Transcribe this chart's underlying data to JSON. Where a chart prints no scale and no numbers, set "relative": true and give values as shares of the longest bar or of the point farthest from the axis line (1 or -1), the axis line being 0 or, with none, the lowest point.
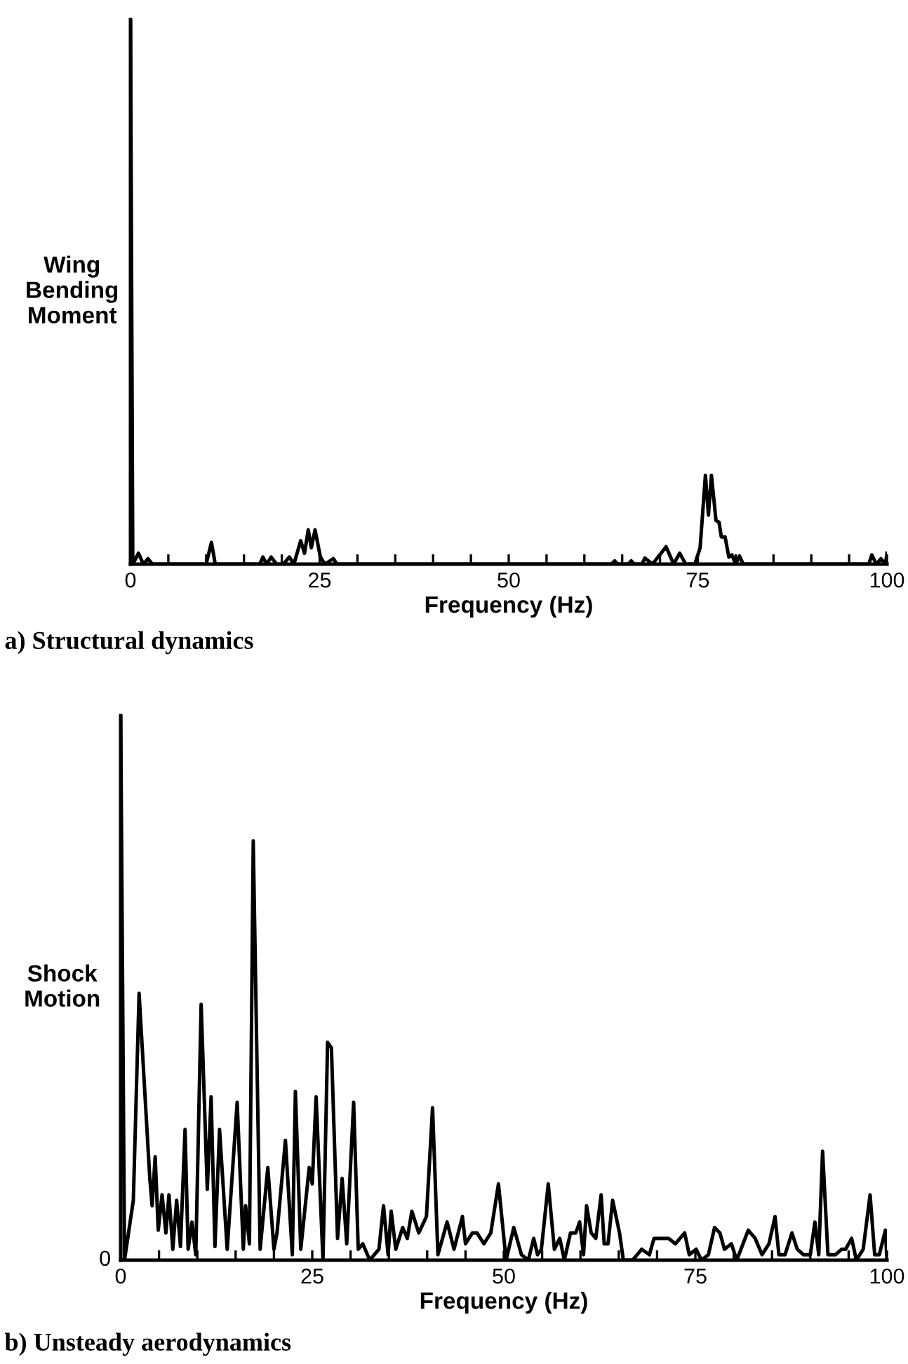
{
  "chart_data": [
    {
      "type": "line",
      "title": "a) Structural dynamics",
      "xlabel": "Frequency (Hz)",
      "ylabel": "Wing\nBending\nMoment",
      "relative": true,
      "grid": false,
      "legend": false,
      "marker": "none",
      "line_style": "solid",
      "xlim": [
        0,
        100
      ],
      "xticks": [
        0,
        {
          "value": 5,
          "label": null
        },
        {
          "value": 10,
          "label": null
        },
        {
          "value": 15,
          "label": null
        },
        {
          "value": 20,
          "label": null
        },
        25,
        {
          "value": 30,
          "label": null
        },
        {
          "value": 35,
          "label": null
        },
        {
          "value": 40,
          "label": null
        },
        {
          "value": 45,
          "label": null
        },
        50,
        {
          "value": 55,
          "label": null
        },
        {
          "value": 60,
          "label": null
        },
        {
          "value": 65,
          "label": null
        },
        {
          "value": 70,
          "label": null
        },
        75,
        {
          "value": 80,
          "label": null
        },
        {
          "value": 85,
          "label": null
        },
        {
          "value": 90,
          "label": null
        },
        {
          "value": 95,
          "label": null
        },
        100
      ],
      "series": [
        {
          "color": "#000000",
          "x": [
            0,
            0.3,
            1.05,
            1.7,
            2.3,
            2.9,
            10.0,
            10.7,
            11.2,
            17.1,
            17.5,
            18.0,
            18.6,
            19.3,
            20.2,
            21.0,
            21.6,
            22.5,
            23.0,
            23.5,
            23.9,
            24.4,
            25.1,
            25.7,
            26.8,
            27.3,
            57.5,
            63.6,
            64.0,
            64.4,
            65.8,
            66.2,
            66.6,
            67.6,
            68.0,
            69.0,
            70.8,
            71.8,
            72.6,
            73.4,
            74.6,
            75.3,
            76.0,
            76.4,
            76.8,
            77.4,
            77.8,
            78.1,
            78.6,
            79.1,
            79.5,
            80.0,
            80.5,
            81.0,
            81.7,
            84.2,
            97.6,
            98.0,
            98.6,
            99.2,
            99.8,
            100
          ],
          "values": [
            1,
            0,
            0.02,
            0,
            0.01,
            0,
            0,
            0.04,
            0,
            0,
            0.013,
            0,
            0.013,
            0,
            0,
            0.013,
            0,
            0.043,
            0.02,
            0.063,
            0.03,
            0.063,
            0.013,
            0,
            0.01,
            0,
            0,
            0,
            0.006,
            0,
            0,
            0.006,
            0,
            0,
            0.011,
            0,
            0.032,
            0,
            0.02,
            0,
            0,
            0.03,
            0.163,
            0.09,
            0.163,
            0.08,
            0.077,
            0.05,
            0.05,
            0.013,
            0.017,
            0,
            0.015,
            0,
            0,
            0,
            0,
            0.017,
            0,
            0.01,
            0,
            0.02
          ]
        }
      ]
    },
    {
      "type": "line",
      "title": "b) Unsteady aerodynamics",
      "xlabel": "Frequency (Hz)",
      "ylabel": "Shock\nMotion",
      "relative": true,
      "grid": false,
      "legend": false,
      "marker": "none",
      "line_style": "solid",
      "xlim": [
        0,
        100
      ],
      "xticks": [
        0,
        {
          "value": 5,
          "label": null
        },
        {
          "value": 10,
          "label": null
        },
        {
          "value": 15,
          "label": null
        },
        {
          "value": 20,
          "label": null
        },
        25,
        {
          "value": 30,
          "label": null
        },
        {
          "value": 35,
          "label": null
        },
        {
          "value": 40,
          "label": null
        },
        {
          "value": 45,
          "label": null
        },
        50,
        {
          "value": 55,
          "label": null
        },
        {
          "value": 60,
          "label": null
        },
        {
          "value": 65,
          "label": null
        },
        {
          "value": 70,
          "label": null
        },
        75,
        {
          "value": 80,
          "label": null
        },
        {
          "value": 85,
          "label": null
        },
        {
          "value": 90,
          "label": null
        },
        {
          "value": 95,
          "label": null
        },
        100
      ],
      "annotations": [
        {
          "text": "0",
          "x": 0,
          "y": 0
        }
      ],
      "series": [
        {
          "color": "#000000",
          "x": [
            0,
            0.5,
            1.65,
            2.4,
            3.8,
            4.1,
            4.5,
            4.9,
            5.4,
            5.9,
            6.3,
            6.8,
            7.3,
            7.8,
            8.4,
            8.8,
            9.3,
            9.8,
            10.5,
            11.3,
            11.8,
            12.3,
            12.9,
            13.9,
            15.2,
            16.0,
            16.3,
            16.8,
            17.3,
            18.2,
            19.2,
            20.0,
            20.4,
            21.5,
            22.4,
            22.8,
            23.5,
            24.6,
            25.0,
            25.5,
            26.4,
            27.0,
            27.5,
            28.3,
            28.9,
            29.5,
            30.4,
            31.0,
            31.6,
            32.5,
            33.7,
            34.3,
            34.9,
            35.3,
            35.9,
            36.8,
            37.4,
            38.0,
            38.9,
            39.9,
            40.7,
            41.4,
            42.6,
            43.5,
            44.6,
            45.0,
            45.9,
            46.5,
            47.4,
            48.3,
            49.3,
            50.3,
            51.3,
            52.3,
            53.2,
            53.9,
            54.4,
            54.9,
            55.8,
            56.6,
            57.3,
            57.9,
            58.7,
            59.4,
            59.9,
            60.4,
            60.8,
            61.4,
            62.0,
            62.7,
            63.1,
            63.6,
            64.2,
            65.1,
            65.6,
            66.8,
            68.0,
            69.0,
            69.6,
            70.5,
            71.5,
            72.4,
            73.0,
            73.6,
            74.2,
            75.1,
            75.8,
            76.7,
            77.5,
            78.2,
            78.8,
            79.7,
            80.4,
            81.9,
            82.8,
            83.7,
            84.6,
            85.4,
            85.9,
            86.7,
            87.6,
            88.3,
            89.1,
            90.0,
            90.6,
            91.1,
            91.6,
            92.3,
            93.3,
            94.1,
            94.6,
            95.4,
            96.0,
            96.9,
            97.8,
            98.4,
            99.0,
            99.8,
            100
          ],
          "values": [
            1,
            0,
            0.11,
            0.49,
            0.15,
            0.1,
            0.19,
            0.055,
            0.12,
            0.05,
            0.12,
            0.02,
            0.11,
            0.025,
            0.24,
            0.02,
            0.07,
            0.01,
            0.47,
            0.13,
            0.3,
            0.025,
            0.24,
            0.02,
            0.29,
            0.02,
            0.1,
            0.03,
            0.77,
            0.02,
            0.17,
            0.02,
            0.05,
            0.22,
            0.01,
            0.31,
            0.02,
            0.17,
            0.14,
            0.3,
            0,
            0.4,
            0.39,
            0.04,
            0.15,
            0.03,
            0.29,
            0.02,
            0.03,
            0,
            0.02,
            0.1,
            0.01,
            0.09,
            0.02,
            0.06,
            0.04,
            0.09,
            0.05,
            0.08,
            0.28,
            0.01,
            0.07,
            0.02,
            0.08,
            0.03,
            0.05,
            0.05,
            0.03,
            0.05,
            0.14,
            0,
            0.06,
            0.01,
            0,
            0.04,
            0.01,
            0.02,
            0.14,
            0.02,
            0.04,
            0,
            0.05,
            0.05,
            0.07,
            0.01,
            0.1,
            0.05,
            0.04,
            0.12,
            0.03,
            0.03,
            0.11,
            0.05,
            0,
            0,
            0.02,
            0.01,
            0.04,
            0.04,
            0.04,
            0.03,
            0.04,
            0.05,
            0.01,
            0.02,
            0,
            0.01,
            0.06,
            0.05,
            0.02,
            0.03,
            0,
            0.055,
            0.04,
            0.01,
            0.03,
            0.08,
            0.01,
            0.01,
            0.05,
            0.02,
            0.01,
            0.01,
            0.07,
            0.01,
            0.2,
            0.01,
            0.01,
            0.02,
            0.02,
            0.04,
            0,
            0.02,
            0.12,
            0.01,
            0.01,
            0.055,
            0
          ]
        }
      ]
    }
  ]
}
